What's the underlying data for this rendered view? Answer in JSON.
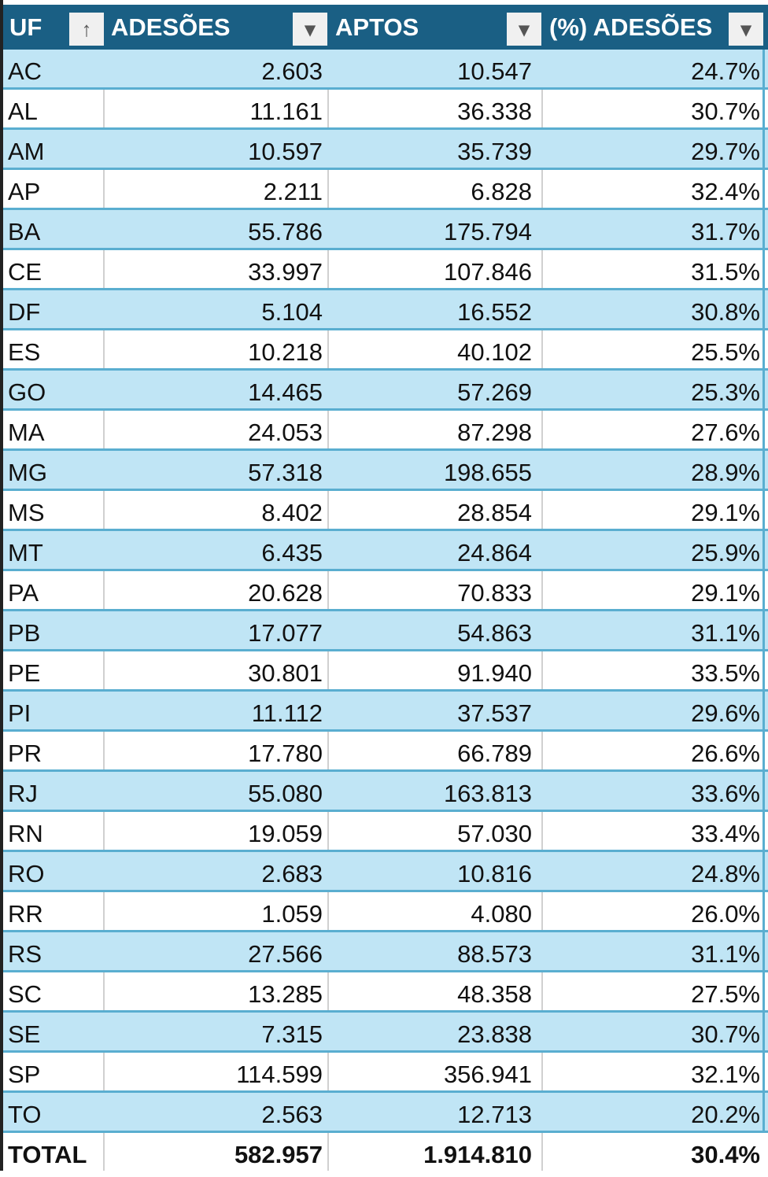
{
  "headers": {
    "uf": "UF",
    "adesoes": "ADESÕES",
    "aptos": "APTOS",
    "pct": "(%) ADESÕES"
  },
  "icons": {
    "uf_filter": "sort-ascending-icon",
    "others": "dropdown-arrow-icon"
  },
  "colors": {
    "header": "#1a5f84",
    "band": "#c0e5f5",
    "border": "#5aaed0"
  },
  "rows": [
    [
      "AC",
      "2.603",
      "10.547",
      "24.7%"
    ],
    [
      "AL",
      "11.161",
      "36.338",
      "30.7%"
    ],
    [
      "AM",
      "10.597",
      "35.739",
      "29.7%"
    ],
    [
      "AP",
      "2.211",
      "6.828",
      "32.4%"
    ],
    [
      "BA",
      "55.786",
      "175.794",
      "31.7%"
    ],
    [
      "CE",
      "33.997",
      "107.846",
      "31.5%"
    ],
    [
      "DF",
      "5.104",
      "16.552",
      "30.8%"
    ],
    [
      "ES",
      "10.218",
      "40.102",
      "25.5%"
    ],
    [
      "GO",
      "14.465",
      "57.269",
      "25.3%"
    ],
    [
      "MA",
      "24.053",
      "87.298",
      "27.6%"
    ],
    [
      "MG",
      "57.318",
      "198.655",
      "28.9%"
    ],
    [
      "MS",
      "8.402",
      "28.854",
      "29.1%"
    ],
    [
      "MT",
      "6.435",
      "24.864",
      "25.9%"
    ],
    [
      "PA",
      "20.628",
      "70.833",
      "29.1%"
    ],
    [
      "PB",
      "17.077",
      "54.863",
      "31.1%"
    ],
    [
      "PE",
      "30.801",
      "91.940",
      "33.5%"
    ],
    [
      "PI",
      "11.112",
      "37.537",
      "29.6%"
    ],
    [
      "PR",
      "17.780",
      "66.789",
      "26.6%"
    ],
    [
      "RJ",
      "55.080",
      "163.813",
      "33.6%"
    ],
    [
      "RN",
      "19.059",
      "57.030",
      "33.4%"
    ],
    [
      "RO",
      "2.683",
      "10.816",
      "24.8%"
    ],
    [
      "RR",
      "1.059",
      "4.080",
      "26.0%"
    ],
    [
      "RS",
      "27.566",
      "88.573",
      "31.1%"
    ],
    [
      "SC",
      "13.285",
      "48.358",
      "27.5%"
    ],
    [
      "SE",
      "7.315",
      "23.838",
      "30.7%"
    ],
    [
      "SP",
      "114.599",
      "356.941",
      "32.1%"
    ],
    [
      "TO",
      "2.563",
      "12.713",
      "20.2%"
    ]
  ],
  "total": [
    "TOTAL",
    "582.957",
    "1.914.810",
    "30.4%"
  ]
}
